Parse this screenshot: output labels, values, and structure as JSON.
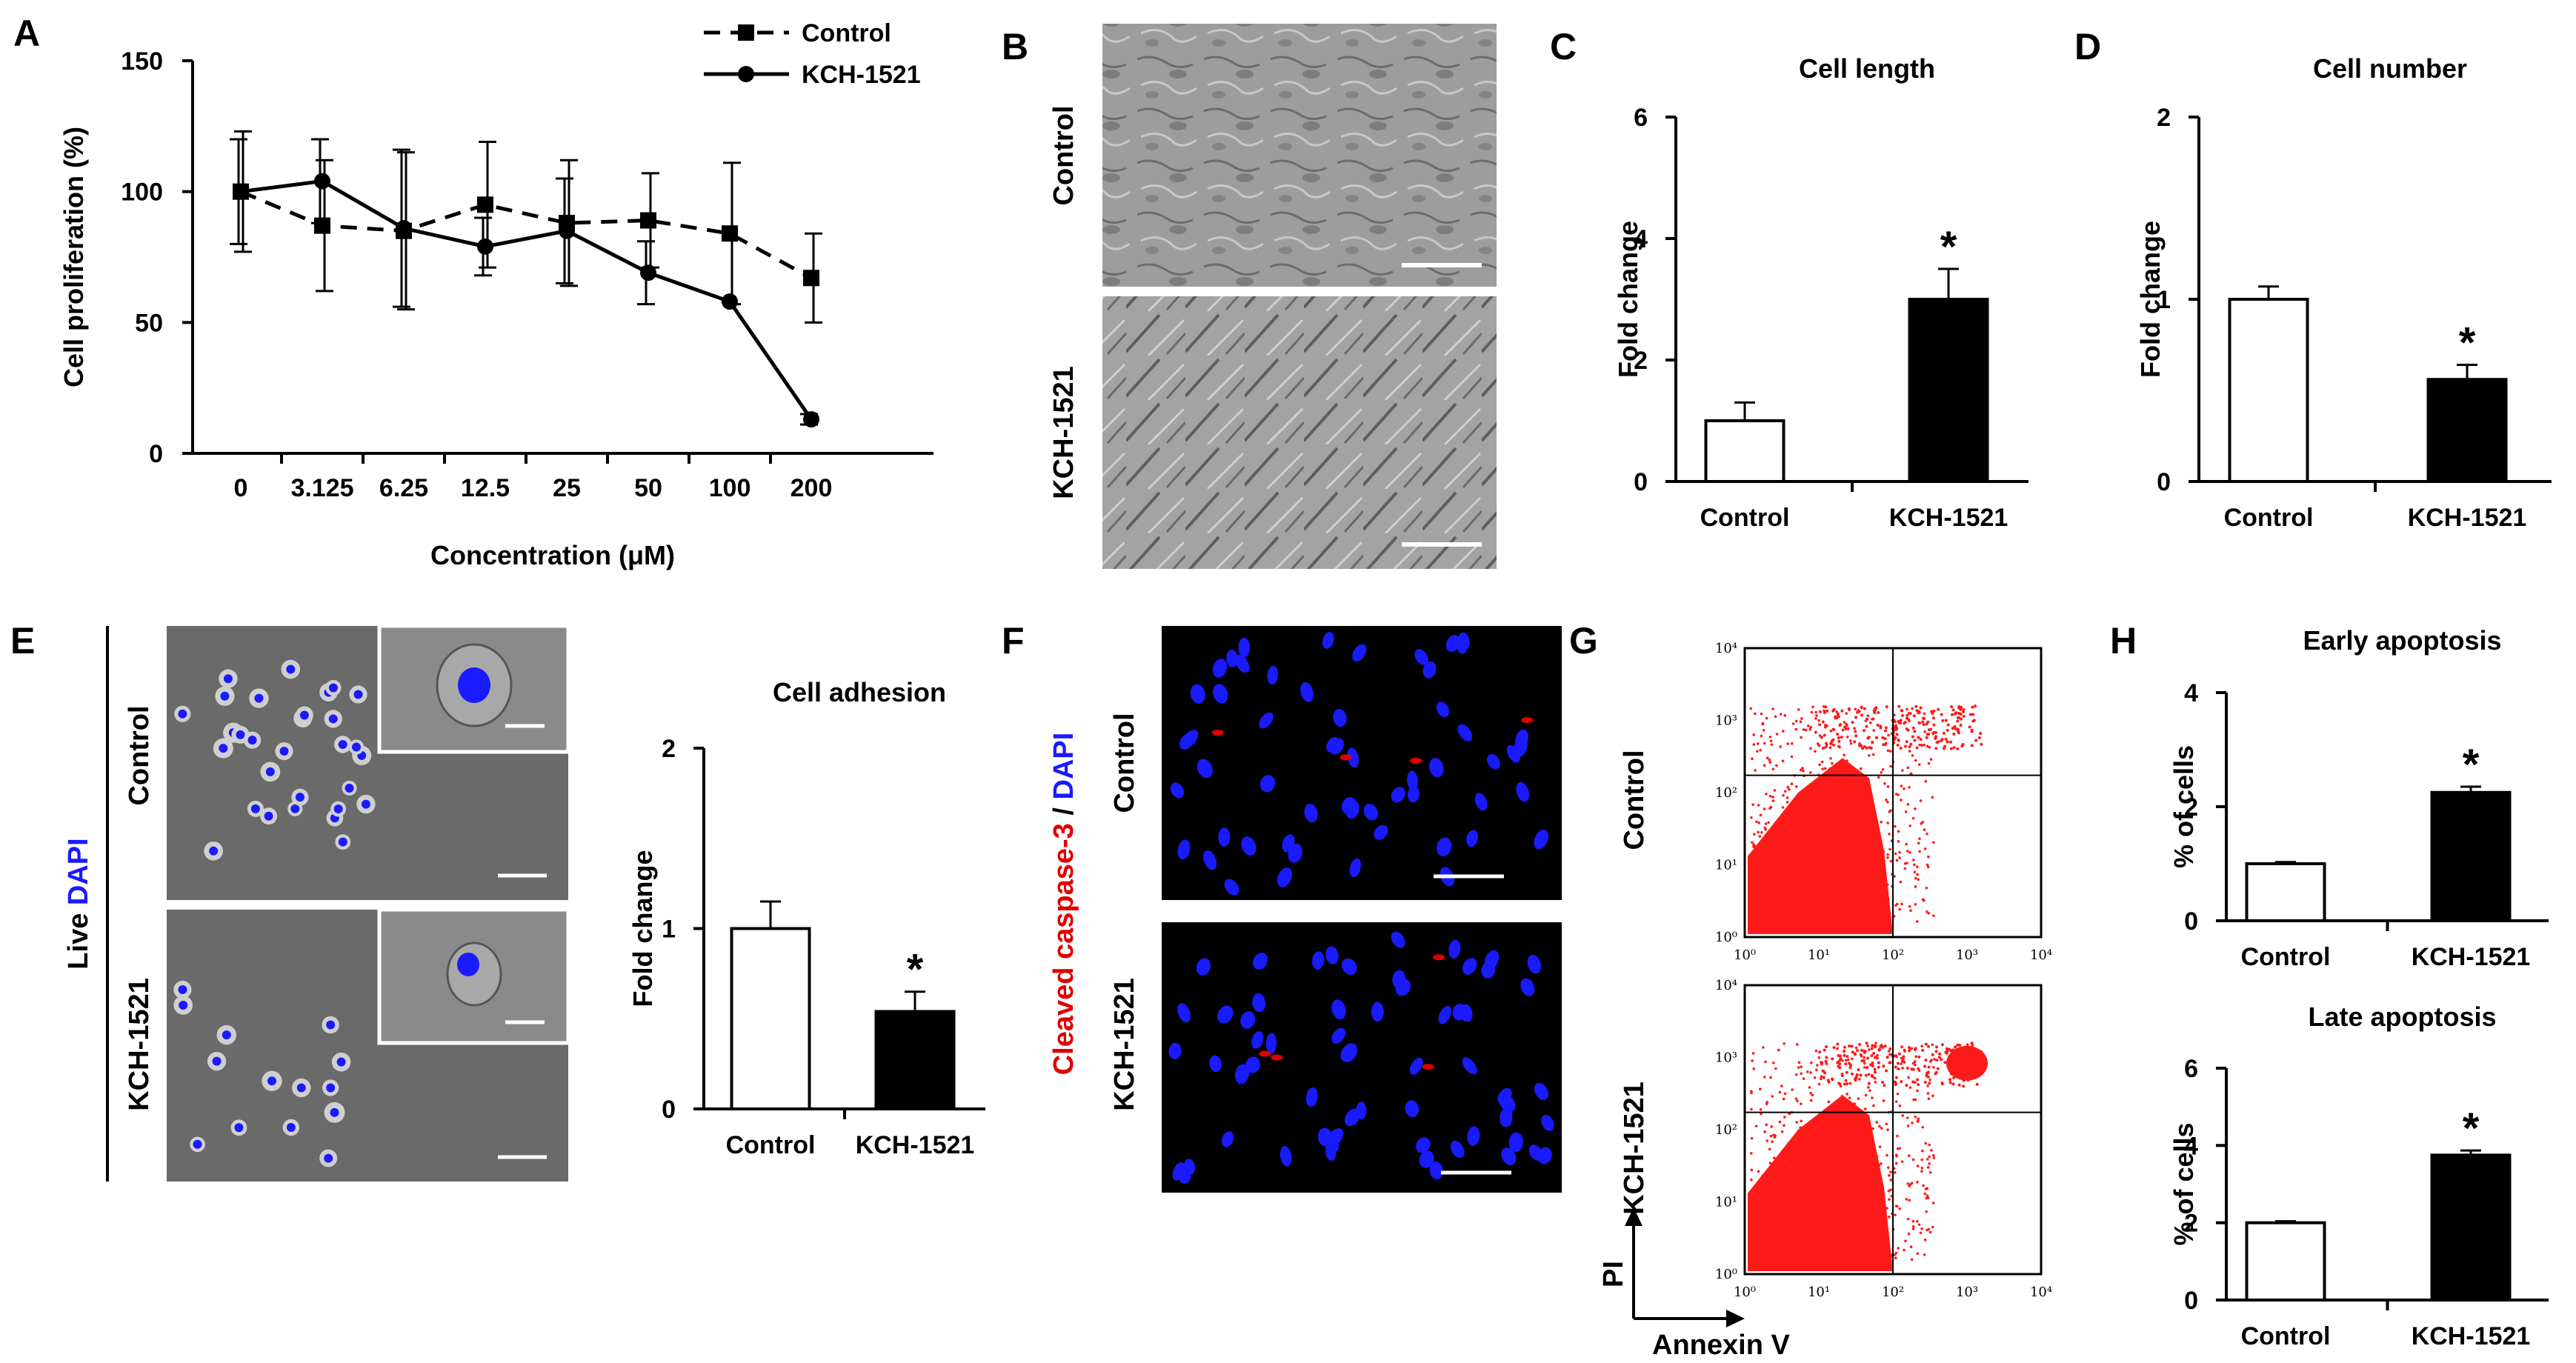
{
  "panels": {
    "A": "A",
    "B": "B",
    "C": "C",
    "D": "D",
    "E": "E",
    "F": "F",
    "G": "G",
    "H": "H"
  },
  "groups": {
    "control": "Control",
    "kch": "KCH-1521"
  },
  "labels": {
    "live": "Live",
    "dapi": "DAPI",
    "cleaved": "Cleaved caspase-3",
    "slash": " / ",
    "pi": "PI",
    "annexin": "Annexin V",
    "flow_ticks": [
      "10⁰",
      "10¹",
      "10²",
      "10³",
      "10⁴"
    ]
  },
  "colors": {
    "highlight_tick": "#e00000",
    "dapi_blue": "#1a1aff",
    "caspase_red": "#e00000",
    "flow_red": "#ff1a1a",
    "brightfield": "#9a9a9a",
    "live_bg": "#6a6a6a"
  },
  "chart_data": [
    {
      "id": "A",
      "type": "line",
      "ylabel": "Cell proliferation (%)",
      "xlabel": "Concentration (μM)",
      "categories": [
        "0",
        "3.125",
        "6.25",
        "12.5",
        "25",
        "50",
        "100",
        "200"
      ],
      "highlight_category": "100",
      "ylim": [
        0,
        150
      ],
      "yticks": [
        0,
        50,
        100,
        150
      ],
      "legend_position": "top-right",
      "series": [
        {
          "name": "Control",
          "style": "dashed",
          "marker": "square",
          "values": [
            100,
            87,
            85,
            95,
            88,
            89,
            84,
            67
          ],
          "errors": [
            23,
            25,
            30,
            24,
            24,
            18,
            27,
            17
          ]
        },
        {
          "name": "KCH-1521",
          "style": "solid",
          "marker": "circle",
          "values": [
            100,
            104,
            86,
            79,
            85,
            69,
            58,
            13
          ],
          "errors": [
            20,
            16,
            30,
            11,
            20,
            12,
            0,
            2
          ]
        }
      ]
    },
    {
      "id": "C",
      "type": "bar",
      "title": "Cell length",
      "ylabel": "Fold change",
      "categories": [
        "Control",
        "KCH-1521"
      ],
      "values": [
        1.0,
        3.0
      ],
      "errors": [
        0.3,
        0.5
      ],
      "ylim": [
        0,
        6
      ],
      "yticks": [
        0,
        2,
        4,
        6
      ],
      "significance": [
        "",
        "*"
      ]
    },
    {
      "id": "D",
      "type": "bar",
      "title": "Cell number",
      "ylabel": "Fold change",
      "categories": [
        "Control",
        "KCH-1521"
      ],
      "values": [
        1.0,
        0.56
      ],
      "errors": [
        0.07,
        0.08
      ],
      "ylim": [
        0,
        2
      ],
      "yticks": [
        0,
        1,
        2
      ],
      "significance": [
        "",
        "*"
      ]
    },
    {
      "id": "E",
      "type": "bar",
      "title": "Cell adhesion",
      "ylabel": "Fold change",
      "categories": [
        "Control",
        "KCH-1521"
      ],
      "values": [
        1.0,
        0.54
      ],
      "errors": [
        0.15,
        0.11
      ],
      "ylim": [
        0,
        2
      ],
      "yticks": [
        0,
        1,
        2
      ],
      "significance": [
        "",
        "*"
      ]
    },
    {
      "id": "H1",
      "type": "bar",
      "title": "Early apoptosis",
      "ylabel": "% of cells",
      "categories": [
        "Control",
        "KCH-1521"
      ],
      "values": [
        1.0,
        2.25
      ],
      "errors": [
        0.03,
        0.1
      ],
      "ylim": [
        0,
        4
      ],
      "yticks": [
        0,
        2,
        4
      ],
      "significance": [
        "",
        "*"
      ]
    },
    {
      "id": "H2",
      "type": "bar",
      "title": "Late apoptosis",
      "ylabel": "% of cells",
      "categories": [
        "Control",
        "KCH-1521"
      ],
      "values": [
        2.0,
        3.75
      ],
      "errors": [
        0.04,
        0.12
      ],
      "ylim": [
        0,
        6
      ],
      "yticks": [
        0,
        2,
        4,
        6
      ],
      "significance": [
        "",
        "*"
      ]
    }
  ]
}
